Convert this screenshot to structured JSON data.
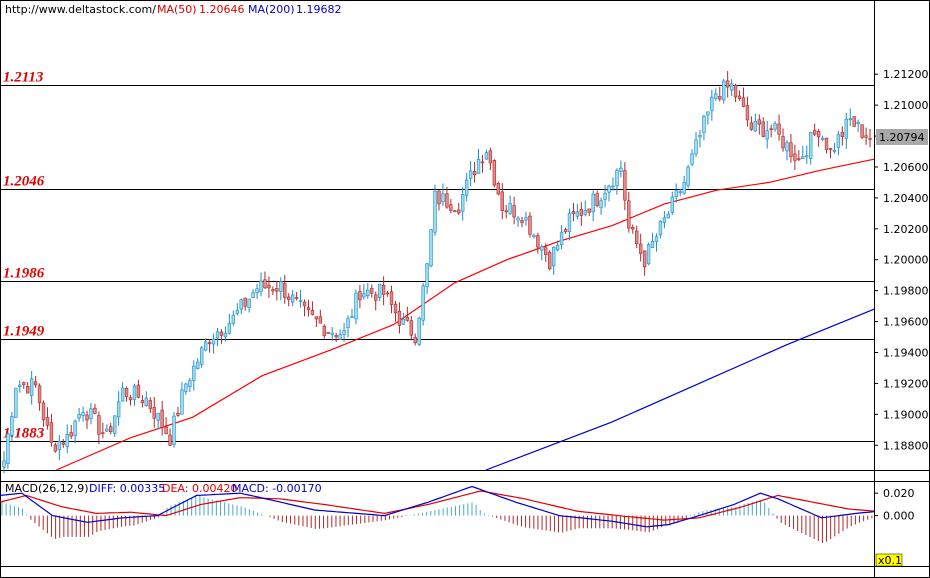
{
  "chart_data": {
    "type": "candlestick",
    "header": {
      "url": "http://www.deltastock.com/",
      "ma50_label": "MA(50)",
      "ma50_value": "1.20646",
      "ma200_label": "MA(200)",
      "ma200_value": "1.19682"
    },
    "price_axis": {
      "ylim": [
        1.1864,
        1.2168
      ],
      "ticks": [
        "1.21200",
        "1.21000",
        "1.20800",
        "1.20600",
        "1.20400",
        "1.20200",
        "1.20000",
        "1.19800",
        "1.19600",
        "1.19400",
        "1.19200",
        "1.19000",
        "1.18800"
      ],
      "current_price": "1.20794"
    },
    "levels": [
      {
        "value": 1.2113,
        "label": "1.2113"
      },
      {
        "value": 1.2046,
        "label": "1.2046"
      },
      {
        "value": 1.1986,
        "label": "1.1986"
      },
      {
        "value": 1.1949,
        "label": "1.1949"
      },
      {
        "value": 1.1883,
        "label": "1.1883"
      }
    ],
    "anchors": [
      {
        "i": 0,
        "p": 1.187
      },
      {
        "i": 3,
        "p": 1.192
      },
      {
        "i": 8,
        "p": 1.1918
      },
      {
        "i": 12,
        "p": 1.188
      },
      {
        "i": 16,
        "p": 1.1885
      },
      {
        "i": 20,
        "p": 1.1905
      },
      {
        "i": 26,
        "p": 1.1885
      },
      {
        "i": 30,
        "p": 1.1915
      },
      {
        "i": 36,
        "p": 1.191
      },
      {
        "i": 42,
        "p": 1.1885
      },
      {
        "i": 46,
        "p": 1.192
      },
      {
        "i": 52,
        "p": 1.195
      },
      {
        "i": 58,
        "p": 1.1962
      },
      {
        "i": 64,
        "p": 1.1982
      },
      {
        "i": 70,
        "p": 1.1983
      },
      {
        "i": 76,
        "p": 1.1965
      },
      {
        "i": 82,
        "p": 1.1955
      },
      {
        "i": 86,
        "p": 1.1952
      },
      {
        "i": 90,
        "p": 1.198
      },
      {
        "i": 96,
        "p": 1.1978
      },
      {
        "i": 101,
        "p": 1.1958
      },
      {
        "i": 104,
        "p": 1.1952
      },
      {
        "i": 107,
        "p": 1.1995
      },
      {
        "i": 109,
        "p": 1.204
      },
      {
        "i": 115,
        "p": 1.2036
      },
      {
        "i": 120,
        "p": 1.2065
      },
      {
        "i": 122,
        "p": 1.2072
      },
      {
        "i": 126,
        "p": 1.2035
      },
      {
        "i": 131,
        "p": 1.203
      },
      {
        "i": 138,
        "p": 1.2
      },
      {
        "i": 143,
        "p": 1.2025
      },
      {
        "i": 150,
        "p": 1.204
      },
      {
        "i": 156,
        "p": 1.206
      },
      {
        "i": 158,
        "p": 1.202
      },
      {
        "i": 162,
        "p": 1.2
      },
      {
        "i": 168,
        "p": 1.203
      },
      {
        "i": 172,
        "p": 1.205
      },
      {
        "i": 176,
        "p": 1.208
      },
      {
        "i": 180,
        "p": 1.2108
      },
      {
        "i": 184,
        "p": 1.2112
      },
      {
        "i": 189,
        "p": 1.2085
      },
      {
        "i": 194,
        "p": 1.2085
      },
      {
        "i": 201,
        "p": 1.2065
      },
      {
        "i": 206,
        "p": 1.2085
      },
      {
        "i": 209,
        "p": 1.207
      },
      {
        "i": 214,
        "p": 1.209
      },
      {
        "i": 216,
        "p": 1.2085
      },
      {
        "i": 219,
        "p": 1.2079
      }
    ],
    "ma_lines": [
      {
        "name": "MA(50)",
        "color": "#ff0000",
        "points": [
          [
            0.0645,
            1.1864
          ],
          [
            0.15,
            1.1885
          ],
          [
            0.22,
            1.1898
          ],
          [
            0.3,
            1.1925
          ],
          [
            0.38,
            1.1942
          ],
          [
            0.45,
            1.1958
          ],
          [
            0.52,
            1.1985
          ],
          [
            0.58,
            1.2
          ],
          [
            0.64,
            1.2012
          ],
          [
            0.7,
            1.2022
          ],
          [
            0.76,
            1.2036
          ],
          [
            0.82,
            1.2045
          ],
          [
            0.88,
            1.205
          ],
          [
            0.94,
            1.2058
          ],
          [
            1.0,
            1.2065
          ]
        ]
      },
      {
        "name": "MA(200)",
        "color": "#0000cc",
        "points": [
          [
            0.556,
            1.1864
          ],
          [
            0.7,
            1.1895
          ],
          [
            0.8,
            1.192
          ],
          [
            0.9,
            1.1945
          ],
          [
            1.0,
            1.1968
          ]
        ]
      }
    ],
    "macd": {
      "label": "MACD(26,12,9)",
      "diff_label": "DIFF: 0.00335",
      "dea_label": "DEA: 0.00420",
      "macd_label": "MACD: -0.00170",
      "ylim": [
        -0.0045,
        0.003
      ],
      "ticks": [
        "0.020",
        "0.000"
      ],
      "scale_label": "x0.1",
      "diff_anchors": [
        [
          0,
          0.0018
        ],
        [
          0.05,
          0.002
        ],
        [
          0.12,
          0.0
        ],
        [
          0.2,
          -0.0006
        ],
        [
          0.28,
          -0.0002
        ],
        [
          0.36,
          0.0
        ],
        [
          0.45,
          0.0018
        ],
        [
          0.55,
          0.002
        ],
        [
          0.62,
          0.0014
        ],
        [
          0.72,
          0.0005
        ],
        [
          0.88,
          0.0
        ],
        [
          0.98,
          0.0012
        ],
        [
          1.08,
          0.0026
        ],
        [
          1.18,
          0.0012
        ],
        [
          1.28,
          0.0
        ],
        [
          1.4,
          -0.0005
        ],
        [
          1.48,
          -0.001
        ],
        [
          1.53,
          -0.0008
        ],
        [
          1.6,
          0.0
        ],
        [
          1.68,
          0.001
        ],
        [
          1.74,
          0.002
        ],
        [
          1.78,
          0.0015
        ],
        [
          1.88,
          -0.0002
        ],
        [
          1.96,
          0.0002
        ],
        [
          2.0,
          0.00035
        ]
      ],
      "dea_anchors": [
        [
          0,
          0.0012
        ],
        [
          0.06,
          0.0018
        ],
        [
          0.14,
          0.0008
        ],
        [
          0.22,
          0.0002
        ],
        [
          0.3,
          0.0003
        ],
        [
          0.38,
          0.0
        ],
        [
          0.46,
          0.001
        ],
        [
          0.55,
          0.0016
        ],
        [
          0.64,
          0.0015
        ],
        [
          0.74,
          0.001
        ],
        [
          0.88,
          0.0002
        ],
        [
          0.98,
          0.001
        ],
        [
          1.1,
          0.0022
        ],
        [
          1.2,
          0.0015
        ],
        [
          1.32,
          0.0004
        ],
        [
          1.44,
          -0.0001
        ],
        [
          1.52,
          -0.0004
        ],
        [
          1.6,
          -0.0002
        ],
        [
          1.7,
          0.0008
        ],
        [
          1.78,
          0.0018
        ],
        [
          1.86,
          0.0012
        ],
        [
          1.94,
          0.0006
        ],
        [
          2.0,
          0.0004
        ]
      ]
    },
    "colors": {
      "up_fill": "#99ddf0",
      "up_edge": "#1c8ccc",
      "down_fill": "#e48888",
      "down_edge": "#b02828",
      "level_line": "#000000",
      "macd_bar_up": "#4aa8cc",
      "macd_bar_down": "#b02828"
    }
  }
}
